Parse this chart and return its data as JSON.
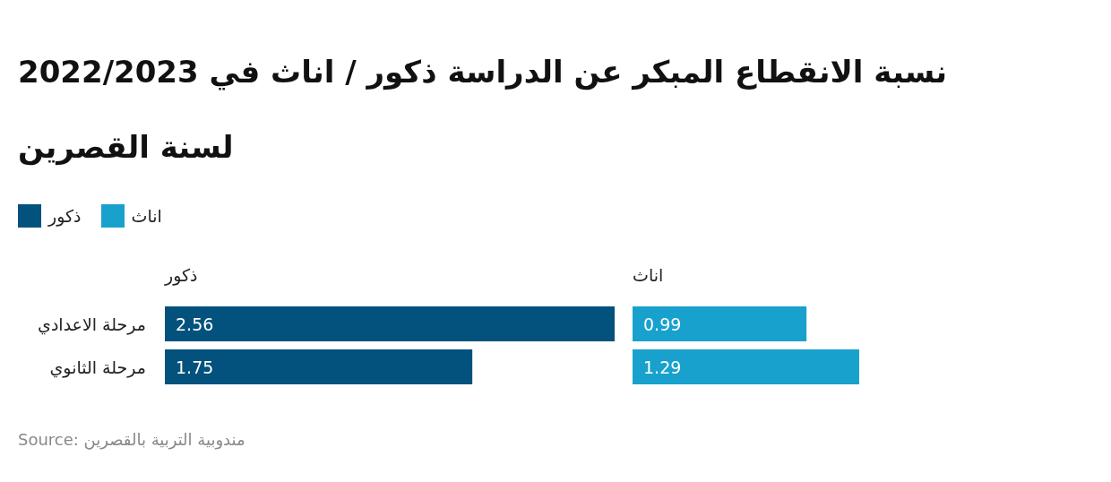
{
  "chart_data": [
    {
      "type": "bar",
      "orientation": "horizontal",
      "title": "نسبة الانقطاع المبكر عن الدراسة ذكور / اناث في 2022/2023 لسنة القصرين",
      "categories": [
        "مرحلة الاعدادي",
        "مرحلة الثانوي"
      ],
      "series": [
        {
          "name": "ذكور",
          "color": "#03527e",
          "values": [
            2.56,
            1.75
          ]
        }
      ],
      "data_labels": true,
      "legend": "top left",
      "tick_labels": "y",
      "annotations": [
        "Source: مندوبية التربية بالقصرين"
      ]
    },
    {
      "type": "bar",
      "orientation": "horizontal",
      "categories": [
        null,
        null
      ],
      "series": [
        {
          "name": "اناث",
          "color": "#18a1cd",
          "values": [
            0.99,
            1.29
          ]
        }
      ],
      "data_labels": true,
      "legend": "top left",
      "tick_labels": false
    }
  ]
}
